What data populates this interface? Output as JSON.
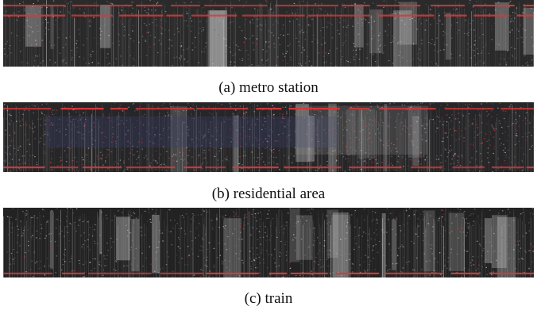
{
  "figure": {
    "panels": [
      {
        "caption": "(a) metro station",
        "colors": {
          "background": "#2a2a2a",
          "accent": "#d43a3a",
          "highlight": "#e8e8e8"
        }
      },
      {
        "caption": "(b) residential area",
        "colors": {
          "background": "#262628",
          "accent": "#d43a3a",
          "highlight": "#e0e0e0",
          "tint": "#3a3f6a"
        }
      },
      {
        "caption": "(c) train",
        "colors": {
          "background": "#222222",
          "accent": "#d43a3a",
          "highlight": "#f0f0f0"
        }
      }
    ]
  }
}
